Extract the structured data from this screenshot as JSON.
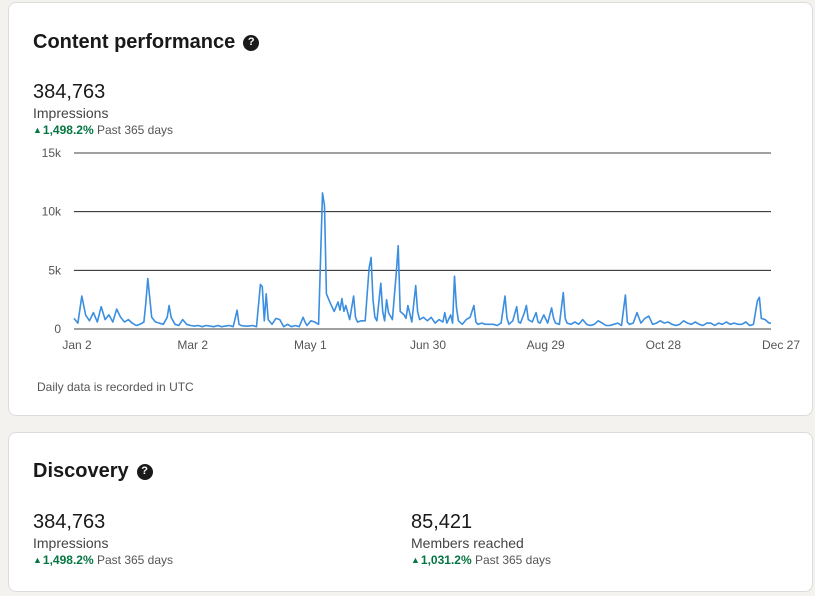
{
  "content_performance": {
    "title": "Content performance",
    "help_icon": "question-circle-icon",
    "metric": {
      "value": "384,763",
      "label": "Impressions",
      "change": "1,498.2%",
      "period": "Past 365 days"
    },
    "footnote": "Daily data is recorded in UTC"
  },
  "discovery": {
    "title": "Discovery",
    "help_icon": "question-circle-icon",
    "impressions": {
      "value": "384,763",
      "label": "Impressions",
      "change": "1,498.2%",
      "period": "Past 365 days"
    },
    "members": {
      "value": "85,421",
      "label": "Members reached",
      "change": "1,031.2%",
      "period": "Past 365 days"
    }
  },
  "colors": {
    "line": "#3b8ee0",
    "positive": "#057642",
    "gridline": "#000000"
  },
  "chart_data": {
    "type": "line",
    "x_unit": "day of year",
    "x_ticks": [
      {
        "day": 0,
        "label": "Jan 2"
      },
      {
        "day": 59,
        "label": "Mar 2"
      },
      {
        "day": 119,
        "label": "May 1"
      },
      {
        "day": 179,
        "label": "Jun 30"
      },
      {
        "day": 239,
        "label": "Aug 29"
      },
      {
        "day": 299,
        "label": "Oct 28"
      },
      {
        "day": 359,
        "label": "Dec 27"
      }
    ],
    "y_ticks": [
      {
        "value": 0,
        "label": "0"
      },
      {
        "value": 5000,
        "label": "5k"
      },
      {
        "value": 10000,
        "label": "10k"
      },
      {
        "value": 15000,
        "label": "15k"
      }
    ],
    "ylim": [
      0,
      15000
    ],
    "xlim": [
      0,
      359
    ],
    "grid": true,
    "points": [
      [
        0,
        900
      ],
      [
        2,
        500
      ],
      [
        4,
        2800
      ],
      [
        6,
        1200
      ],
      [
        8,
        700
      ],
      [
        10,
        1400
      ],
      [
        12,
        600
      ],
      [
        14,
        1900
      ],
      [
        16,
        800
      ],
      [
        18,
        1200
      ],
      [
        20,
        600
      ],
      [
        22,
        1700
      ],
      [
        24,
        1000
      ],
      [
        26,
        600
      ],
      [
        28,
        800
      ],
      [
        30,
        500
      ],
      [
        32,
        300
      ],
      [
        34,
        400
      ],
      [
        36,
        600
      ],
      [
        37,
        2200
      ],
      [
        38,
        4300
      ],
      [
        40,
        1000
      ],
      [
        42,
        600
      ],
      [
        44,
        500
      ],
      [
        46,
        400
      ],
      [
        48,
        1000
      ],
      [
        49,
        2000
      ],
      [
        50,
        1000
      ],
      [
        52,
        400
      ],
      [
        54,
        300
      ],
      [
        56,
        800
      ],
      [
        58,
        400
      ],
      [
        60,
        300
      ],
      [
        62,
        250
      ],
      [
        64,
        300
      ],
      [
        66,
        200
      ],
      [
        68,
        300
      ],
      [
        70,
        250
      ],
      [
        72,
        200
      ],
      [
        74,
        300
      ],
      [
        76,
        200
      ],
      [
        78,
        250
      ],
      [
        80,
        300
      ],
      [
        82,
        200
      ],
      [
        84,
        1600
      ],
      [
        85,
        400
      ],
      [
        86,
        300
      ],
      [
        88,
        250
      ],
      [
        90,
        250
      ],
      [
        92,
        300
      ],
      [
        94,
        200
      ],
      [
        96,
        3800
      ],
      [
        97,
        3600
      ],
      [
        98,
        700
      ],
      [
        99,
        3000
      ],
      [
        100,
        800
      ],
      [
        102,
        400
      ],
      [
        104,
        900
      ],
      [
        106,
        800
      ],
      [
        108,
        200
      ],
      [
        110,
        400
      ],
      [
        112,
        200
      ],
      [
        114,
        300
      ],
      [
        116,
        200
      ],
      [
        118,
        1000
      ],
      [
        119,
        600
      ],
      [
        120,
        300
      ],
      [
        122,
        700
      ],
      [
        124,
        600
      ],
      [
        126,
        400
      ],
      [
        128,
        11600
      ],
      [
        129,
        10500
      ],
      [
        130,
        3000
      ],
      [
        132,
        2200
      ],
      [
        134,
        1500
      ],
      [
        136,
        2300
      ],
      [
        137,
        1600
      ],
      [
        138,
        2600
      ],
      [
        139,
        1500
      ],
      [
        140,
        2000
      ],
      [
        142,
        800
      ],
      [
        144,
        2800
      ],
      [
        145,
        1000
      ],
      [
        146,
        600
      ],
      [
        148,
        700
      ],
      [
        150,
        700
      ],
      [
        152,
        5200
      ],
      [
        153,
        6100
      ],
      [
        154,
        2500
      ],
      [
        155,
        1000
      ],
      [
        156,
        700
      ],
      [
        158,
        3900
      ],
      [
        159,
        1500
      ],
      [
        160,
        700
      ],
      [
        161,
        2500
      ],
      [
        162,
        1400
      ],
      [
        164,
        800
      ],
      [
        166,
        4800
      ],
      [
        167,
        7100
      ],
      [
        168,
        1500
      ],
      [
        170,
        1200
      ],
      [
        171,
        900
      ],
      [
        172,
        2000
      ],
      [
        174,
        600
      ],
      [
        176,
        3700
      ],
      [
        177,
        1500
      ],
      [
        178,
        800
      ],
      [
        180,
        1000
      ],
      [
        182,
        700
      ],
      [
        184,
        1000
      ],
      [
        186,
        500
      ],
      [
        188,
        800
      ],
      [
        190,
        600
      ],
      [
        191,
        1400
      ],
      [
        192,
        500
      ],
      [
        194,
        1200
      ],
      [
        195,
        500
      ],
      [
        196,
        4500
      ],
      [
        197,
        1800
      ],
      [
        198,
        700
      ],
      [
        200,
        400
      ],
      [
        202,
        800
      ],
      [
        204,
        1000
      ],
      [
        206,
        2000
      ],
      [
        207,
        600
      ],
      [
        208,
        400
      ],
      [
        210,
        500
      ],
      [
        212,
        400
      ],
      [
        214,
        400
      ],
      [
        216,
        400
      ],
      [
        218,
        300
      ],
      [
        220,
        500
      ],
      [
        222,
        2800
      ],
      [
        223,
        900
      ],
      [
        224,
        400
      ],
      [
        226,
        700
      ],
      [
        228,
        1900
      ],
      [
        229,
        600
      ],
      [
        230,
        500
      ],
      [
        232,
        1400
      ],
      [
        233,
        2000
      ],
      [
        234,
        800
      ],
      [
        236,
        600
      ],
      [
        238,
        1400
      ],
      [
        239,
        600
      ],
      [
        240,
        500
      ],
      [
        242,
        1200
      ],
      [
        244,
        500
      ],
      [
        246,
        1800
      ],
      [
        247,
        900
      ],
      [
        248,
        500
      ],
      [
        250,
        400
      ],
      [
        252,
        3100
      ],
      [
        253,
        900
      ],
      [
        254,
        500
      ],
      [
        256,
        400
      ],
      [
        258,
        600
      ],
      [
        260,
        400
      ],
      [
        262,
        800
      ],
      [
        264,
        400
      ],
      [
        266,
        300
      ],
      [
        268,
        400
      ],
      [
        270,
        700
      ],
      [
        272,
        500
      ],
      [
        274,
        300
      ],
      [
        276,
        300
      ],
      [
        278,
        400
      ],
      [
        280,
        500
      ],
      [
        282,
        300
      ],
      [
        284,
        2900
      ],
      [
        285,
        600
      ],
      [
        286,
        400
      ],
      [
        288,
        500
      ],
      [
        290,
        1400
      ],
      [
        292,
        500
      ],
      [
        294,
        900
      ],
      [
        296,
        1100
      ],
      [
        298,
        400
      ],
      [
        300,
        500
      ],
      [
        302,
        700
      ],
      [
        304,
        500
      ],
      [
        306,
        600
      ],
      [
        308,
        400
      ],
      [
        310,
        300
      ],
      [
        312,
        400
      ],
      [
        314,
        700
      ],
      [
        316,
        500
      ],
      [
        318,
        400
      ],
      [
        320,
        600
      ],
      [
        322,
        400
      ],
      [
        324,
        300
      ],
      [
        326,
        500
      ],
      [
        328,
        500
      ],
      [
        330,
        300
      ],
      [
        332,
        500
      ],
      [
        334,
        400
      ],
      [
        336,
        600
      ],
      [
        338,
        400
      ],
      [
        340,
        500
      ],
      [
        342,
        400
      ],
      [
        344,
        400
      ],
      [
        346,
        600
      ],
      [
        348,
        300
      ],
      [
        350,
        400
      ],
      [
        352,
        2400
      ],
      [
        353,
        2700
      ],
      [
        354,
        900
      ],
      [
        356,
        800
      ],
      [
        358,
        500
      ],
      [
        359,
        500
      ]
    ]
  }
}
